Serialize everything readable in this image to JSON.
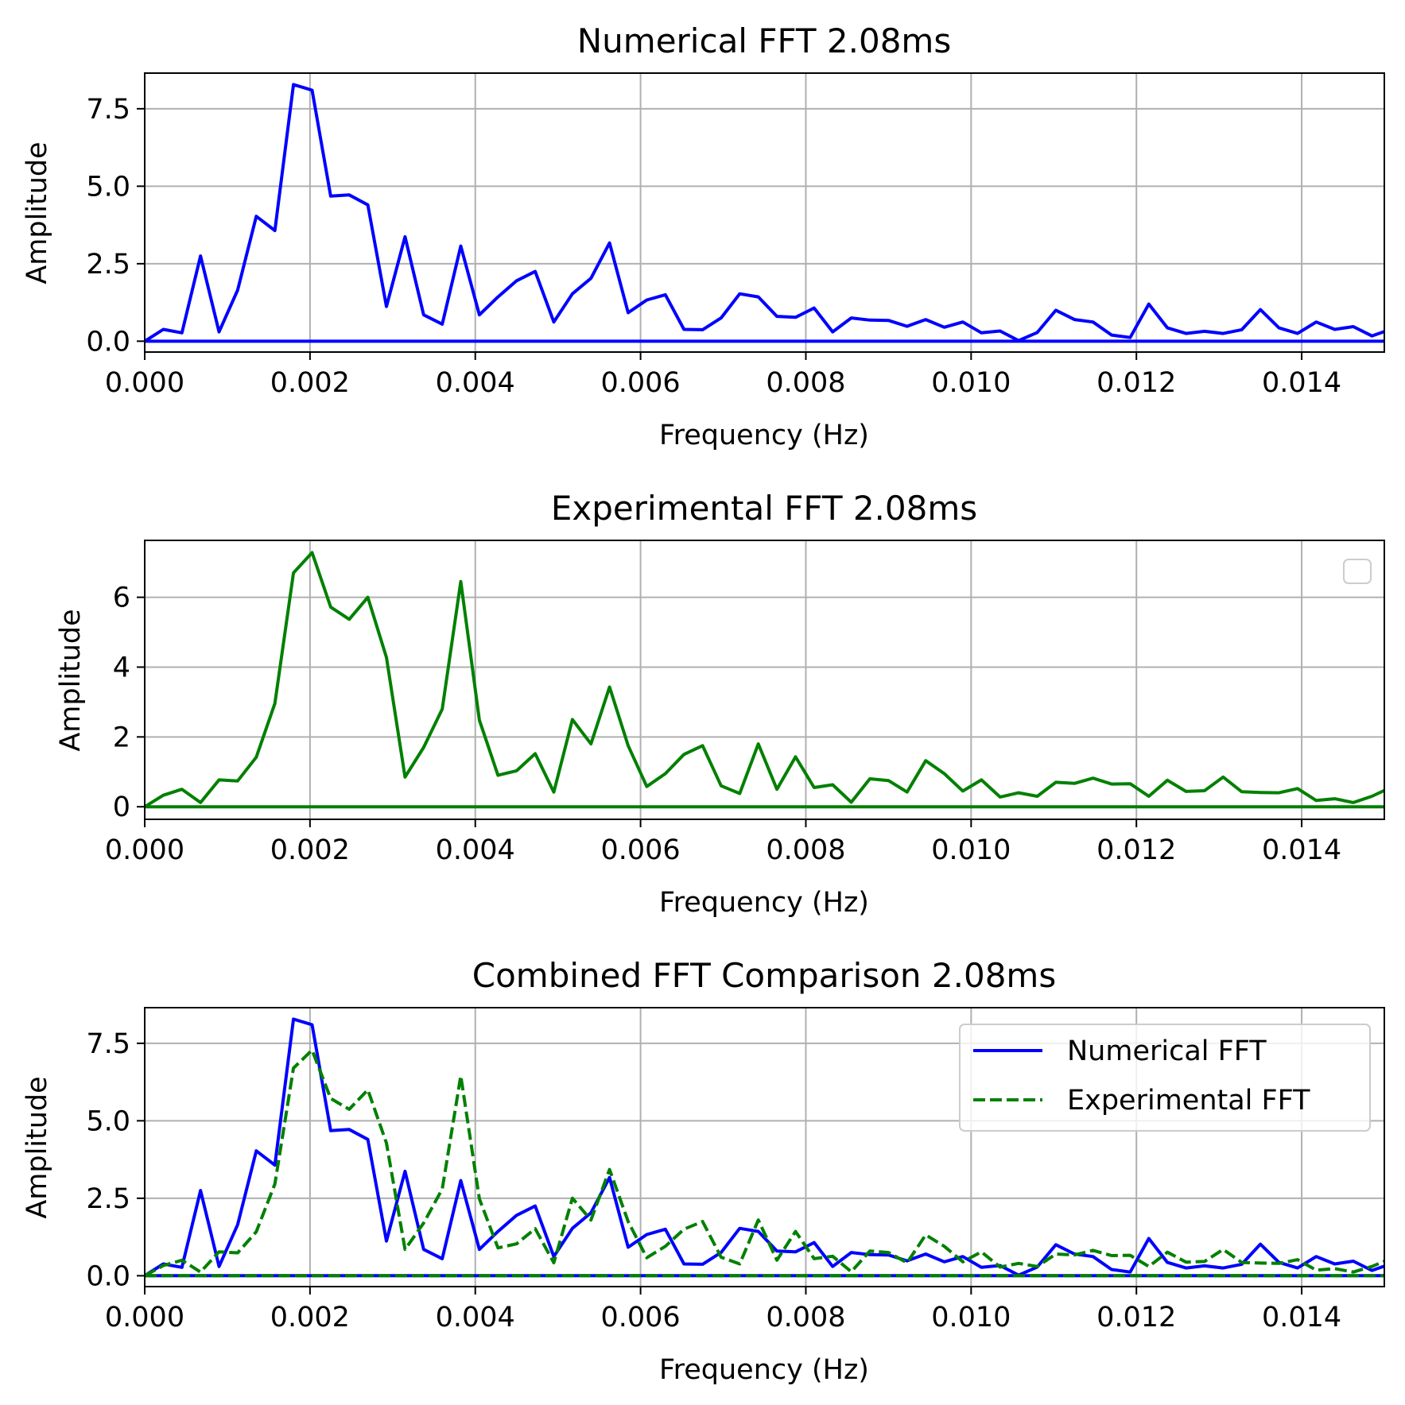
{
  "chart_data": [
    {
      "type": "line",
      "title": "Numerical FFT 2.08ms",
      "xlabel": "Frequency (Hz)",
      "ylabel": "Amplitude",
      "xlim": [
        0,
        0.015
      ],
      "ylim": [
        -0.35,
        8.65
      ],
      "xticks": [
        0,
        0.002,
        0.004,
        0.006,
        0.008,
        0.01,
        0.012,
        0.014
      ],
      "xtick_labels": [
        "0.000",
        "0.002",
        "0.004",
        "0.006",
        "0.008",
        "0.010",
        "0.012",
        "0.014"
      ],
      "yticks": [
        0,
        2.5,
        5.0,
        7.5
      ],
      "ytick_labels": [
        "0.0",
        "2.5",
        "5.0",
        "7.5"
      ],
      "grid": true,
      "legend": "none",
      "series": [
        {
          "color": "#0000ff",
          "style": "solid",
          "x": [
            0,
            0.000225,
            0.00045,
            0.000675,
            0.0009,
            0.001125,
            0.00135,
            0.001575,
            0.0018,
            0.002025,
            0.00225,
            0.002475,
            0.0027,
            0.002925,
            0.00315,
            0.003375,
            0.0036,
            0.003825,
            0.00405,
            0.004275,
            0.0045,
            0.004725,
            0.00495,
            0.005175,
            0.0054,
            0.005625,
            0.00585,
            0.006075,
            0.0063,
            0.006525,
            0.00675,
            0.006975,
            0.0072,
            0.007425,
            0.00765,
            0.007875,
            0.0081,
            0.008325,
            0.00855,
            0.008775,
            0.009,
            0.009225,
            0.00945,
            0.009675,
            0.0099,
            0.010125,
            0.01035,
            0.010575,
            0.0108,
            0.011025,
            0.01125,
            0.011475,
            0.0117,
            0.011925,
            0.01215,
            0.012375,
            0.0126,
            0.012825,
            0.01305,
            0.013275,
            0.0135,
            0.013725,
            0.01395,
            0.014175,
            0.0144,
            0.014625,
            0.01485,
            0.015075
          ],
          "values": [
            0.0,
            0.38,
            0.27,
            2.75,
            0.3,
            1.65,
            4.03,
            3.57,
            8.28,
            8.1,
            4.68,
            4.72,
            4.4,
            1.12,
            3.37,
            0.85,
            0.55,
            3.07,
            0.85,
            1.43,
            1.95,
            2.25,
            0.62,
            1.53,
            2.03,
            3.17,
            0.92,
            1.33,
            1.5,
            0.38,
            0.37,
            0.75,
            1.53,
            1.43,
            0.8,
            0.77,
            1.07,
            0.3,
            0.75,
            0.68,
            0.67,
            0.48,
            0.7,
            0.45,
            0.62,
            0.27,
            0.33,
            0.02,
            0.28,
            1.0,
            0.7,
            0.62,
            0.2,
            0.12,
            1.2,
            0.43,
            0.25,
            0.32,
            0.25,
            0.37,
            1.02,
            0.43,
            0.25,
            0.62,
            0.38,
            0.47,
            0.17,
            0.38
          ]
        },
        {
          "color": "#0000ff",
          "style": "solid",
          "x": [
            0,
            0.015
          ],
          "values": [
            0,
            0
          ]
        }
      ]
    },
    {
      "type": "line",
      "title": "Experimental FFT 2.08ms",
      "xlabel": "Frequency (Hz)",
      "ylabel": "Amplitude",
      "xlim": [
        0,
        0.015
      ],
      "ylim": [
        -0.36,
        7.63
      ],
      "xticks": [
        0,
        0.002,
        0.004,
        0.006,
        0.008,
        0.01,
        0.012,
        0.014
      ],
      "xtick_labels": [
        "0.000",
        "0.002",
        "0.004",
        "0.006",
        "0.008",
        "0.010",
        "0.012",
        "0.014"
      ],
      "yticks": [
        0,
        2,
        4,
        6
      ],
      "ytick_labels": [
        "0",
        "2",
        "4",
        "6"
      ],
      "grid": true,
      "legend": "empty, top-right",
      "series": [
        {
          "color": "#008000",
          "style": "solid",
          "x": [
            0,
            0.000225,
            0.00045,
            0.000675,
            0.0009,
            0.001125,
            0.00135,
            0.001575,
            0.0018,
            0.002025,
            0.00225,
            0.002475,
            0.0027,
            0.002925,
            0.00315,
            0.003375,
            0.0036,
            0.003825,
            0.00405,
            0.004275,
            0.0045,
            0.004725,
            0.00495,
            0.005175,
            0.0054,
            0.005625,
            0.00585,
            0.006075,
            0.0063,
            0.006525,
            0.00675,
            0.006975,
            0.0072,
            0.007425,
            0.00765,
            0.007875,
            0.0081,
            0.008325,
            0.00855,
            0.008775,
            0.009,
            0.009225,
            0.00945,
            0.009675,
            0.0099,
            0.010125,
            0.01035,
            0.010575,
            0.0108,
            0.011025,
            0.01125,
            0.011475,
            0.0117,
            0.011925,
            0.01215,
            0.012375,
            0.0126,
            0.012825,
            0.01305,
            0.013275,
            0.0135,
            0.013725,
            0.01395,
            0.014175,
            0.0144,
            0.014625,
            0.01485,
            0.015075
          ],
          "values": [
            0.0,
            0.33,
            0.5,
            0.12,
            0.77,
            0.74,
            1.42,
            2.96,
            6.7,
            7.28,
            5.72,
            5.37,
            6.0,
            4.28,
            0.85,
            1.7,
            2.8,
            6.45,
            2.48,
            0.9,
            1.03,
            1.52,
            0.42,
            2.5,
            1.8,
            3.43,
            1.75,
            0.58,
            0.95,
            1.5,
            1.75,
            0.6,
            0.38,
            1.8,
            0.5,
            1.43,
            0.55,
            0.63,
            0.13,
            0.8,
            0.75,
            0.42,
            1.32,
            0.95,
            0.45,
            0.77,
            0.28,
            0.4,
            0.3,
            0.7,
            0.67,
            0.82,
            0.65,
            0.66,
            0.3,
            0.76,
            0.44,
            0.46,
            0.85,
            0.43,
            0.41,
            0.4,
            0.52,
            0.18,
            0.23,
            0.12,
            0.3,
            0.55
          ]
        },
        {
          "color": "#008000",
          "style": "solid",
          "x": [
            0,
            0.015
          ],
          "values": [
            0,
            0
          ]
        }
      ]
    },
    {
      "type": "line",
      "title": "Combined FFT Comparison 2.08ms",
      "xlabel": "Frequency (Hz)",
      "ylabel": "Amplitude",
      "xlim": [
        0,
        0.015
      ],
      "ylim": [
        -0.35,
        8.65
      ],
      "xticks": [
        0,
        0.002,
        0.004,
        0.006,
        0.008,
        0.01,
        0.012,
        0.014
      ],
      "xtick_labels": [
        "0.000",
        "0.002",
        "0.004",
        "0.006",
        "0.008",
        "0.010",
        "0.012",
        "0.014"
      ],
      "yticks": [
        0,
        2.5,
        5.0,
        7.5
      ],
      "ytick_labels": [
        "0.0",
        "2.5",
        "5.0",
        "7.5"
      ],
      "grid": true,
      "legend": "upper right",
      "series": [
        {
          "name": "Numerical FFT",
          "color": "#0000ff",
          "style": "solid",
          "x": [
            0,
            0.000225,
            0.00045,
            0.000675,
            0.0009,
            0.001125,
            0.00135,
            0.001575,
            0.0018,
            0.002025,
            0.00225,
            0.002475,
            0.0027,
            0.002925,
            0.00315,
            0.003375,
            0.0036,
            0.003825,
            0.00405,
            0.004275,
            0.0045,
            0.004725,
            0.00495,
            0.005175,
            0.0054,
            0.005625,
            0.00585,
            0.006075,
            0.0063,
            0.006525,
            0.00675,
            0.006975,
            0.0072,
            0.007425,
            0.00765,
            0.007875,
            0.0081,
            0.008325,
            0.00855,
            0.008775,
            0.009,
            0.009225,
            0.00945,
            0.009675,
            0.0099,
            0.010125,
            0.01035,
            0.010575,
            0.0108,
            0.011025,
            0.01125,
            0.011475,
            0.0117,
            0.011925,
            0.01215,
            0.012375,
            0.0126,
            0.012825,
            0.01305,
            0.013275,
            0.0135,
            0.013725,
            0.01395,
            0.014175,
            0.0144,
            0.014625,
            0.01485,
            0.015075
          ],
          "values": [
            0.0,
            0.38,
            0.27,
            2.75,
            0.3,
            1.65,
            4.03,
            3.57,
            8.28,
            8.1,
            4.68,
            4.72,
            4.4,
            1.12,
            3.37,
            0.85,
            0.55,
            3.07,
            0.85,
            1.43,
            1.95,
            2.25,
            0.62,
            1.53,
            2.03,
            3.17,
            0.92,
            1.33,
            1.5,
            0.38,
            0.37,
            0.75,
            1.53,
            1.43,
            0.8,
            0.77,
            1.07,
            0.3,
            0.75,
            0.68,
            0.67,
            0.48,
            0.7,
            0.45,
            0.62,
            0.27,
            0.33,
            0.02,
            0.28,
            1.0,
            0.7,
            0.62,
            0.2,
            0.12,
            1.2,
            0.43,
            0.25,
            0.32,
            0.25,
            0.37,
            1.02,
            0.43,
            0.25,
            0.62,
            0.38,
            0.47,
            0.17,
            0.38
          ]
        },
        {
          "color": "#0000ff",
          "style": "solid",
          "x": [
            0,
            0.015
          ],
          "values": [
            0,
            0
          ]
        },
        {
          "name": "Experimental FFT",
          "color": "#008000",
          "style": "dashed",
          "x": [
            0,
            0.000225,
            0.00045,
            0.000675,
            0.0009,
            0.001125,
            0.00135,
            0.001575,
            0.0018,
            0.002025,
            0.00225,
            0.002475,
            0.0027,
            0.002925,
            0.00315,
            0.003375,
            0.0036,
            0.003825,
            0.00405,
            0.004275,
            0.0045,
            0.004725,
            0.00495,
            0.005175,
            0.0054,
            0.005625,
            0.00585,
            0.006075,
            0.0063,
            0.006525,
            0.00675,
            0.006975,
            0.0072,
            0.007425,
            0.00765,
            0.007875,
            0.0081,
            0.008325,
            0.00855,
            0.008775,
            0.009,
            0.009225,
            0.00945,
            0.009675,
            0.0099,
            0.010125,
            0.01035,
            0.010575,
            0.0108,
            0.011025,
            0.01125,
            0.011475,
            0.0117,
            0.011925,
            0.01215,
            0.012375,
            0.0126,
            0.012825,
            0.01305,
            0.013275,
            0.0135,
            0.013725,
            0.01395,
            0.014175,
            0.0144,
            0.014625,
            0.01485,
            0.015075
          ],
          "values": [
            0.0,
            0.33,
            0.5,
            0.12,
            0.77,
            0.74,
            1.42,
            2.96,
            6.7,
            7.28,
            5.72,
            5.37,
            6.0,
            4.28,
            0.85,
            1.7,
            2.8,
            6.45,
            2.48,
            0.9,
            1.03,
            1.52,
            0.42,
            2.5,
            1.8,
            3.43,
            1.75,
            0.58,
            0.95,
            1.5,
            1.75,
            0.6,
            0.38,
            1.8,
            0.5,
            1.43,
            0.55,
            0.63,
            0.13,
            0.8,
            0.75,
            0.42,
            1.32,
            0.95,
            0.45,
            0.77,
            0.28,
            0.4,
            0.3,
            0.7,
            0.67,
            0.82,
            0.65,
            0.66,
            0.3,
            0.76,
            0.44,
            0.46,
            0.85,
            0.43,
            0.41,
            0.4,
            0.52,
            0.18,
            0.23,
            0.12,
            0.3,
            0.55
          ]
        },
        {
          "color": "#008000",
          "style": "dashed",
          "x": [
            0,
            0.015
          ],
          "values": [
            0,
            0
          ]
        }
      ]
    }
  ]
}
